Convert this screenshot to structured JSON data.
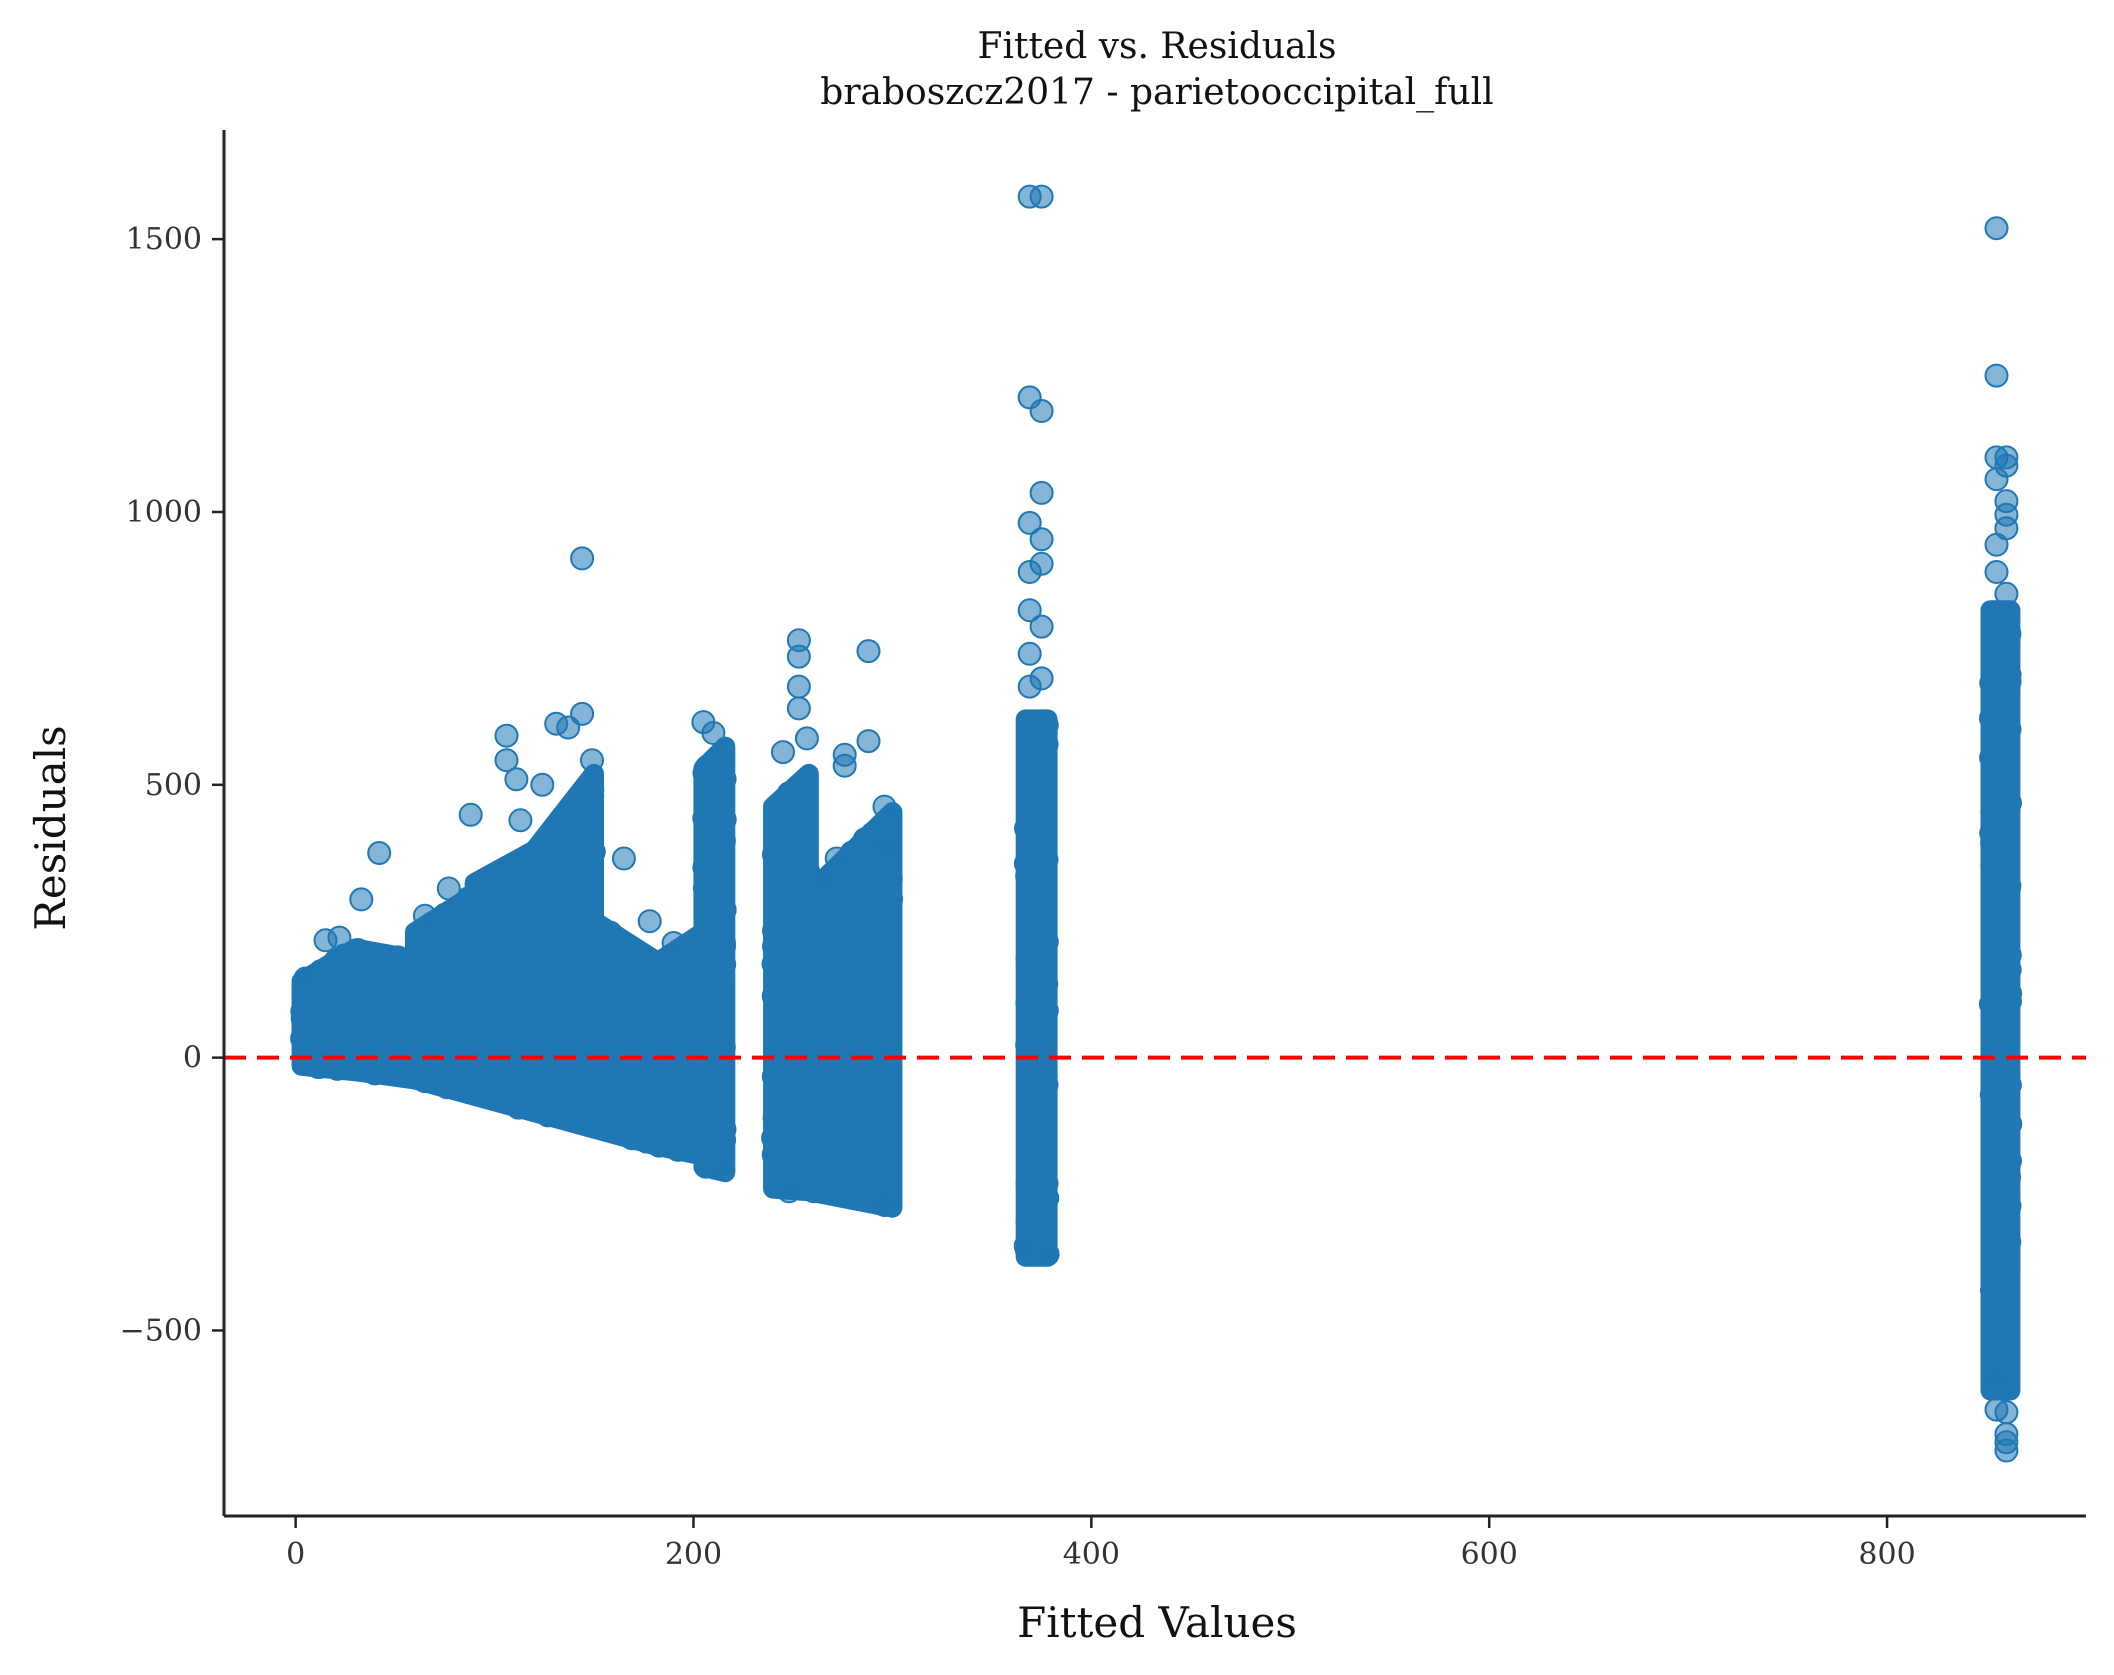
{
  "chart_data": {
    "type": "scatter",
    "title": "Fitted vs. Residuals",
    "subtitle": "braboszcz2017 - parietooccipital_full",
    "xlabel": "Fitted Values",
    "ylabel": "Residuals",
    "xlim": [
      -36,
      900
    ],
    "ylim": [
      -840,
      1700
    ],
    "xticks": [
      0,
      200,
      400,
      600,
      800
    ],
    "yticks": [
      -500,
      0,
      500,
      1000,
      1500
    ],
    "xtick_labels": [
      "0",
      "200",
      "400",
      "600",
      "800"
    ],
    "ytick_labels": [
      "−500",
      "0",
      "500",
      "1000",
      "1500"
    ],
    "grid": false,
    "point_color": "#1f77b4",
    "reference_line": {
      "y": 0,
      "color": "#ff0000",
      "style": "dashed"
    },
    "clusters": [
      {
        "x_range": [
          3,
          30
        ],
        "lower": [
          -15,
          -25
        ],
        "upper": [
          140,
          200
        ]
      },
      {
        "x_range": [
          30,
          60
        ],
        "lower": [
          -25,
          -40
        ],
        "upper": [
          200,
          180
        ]
      },
      {
        "x_range": [
          60,
          90
        ],
        "lower": [
          -40,
          -70
        ],
        "upper": [
          230,
          300
        ]
      },
      {
        "x_range": [
          90,
          120
        ],
        "lower": [
          -70,
          -100
        ],
        "upper": [
          320,
          380
        ]
      },
      {
        "x_range": [
          120,
          150
        ],
        "lower": [
          -100,
          -130
        ],
        "upper": [
          380,
          520
        ]
      },
      {
        "x_range": [
          150,
          180
        ],
        "lower": [
          -130,
          -160
        ],
        "upper": [
          250,
          180
        ]
      },
      {
        "x_range": [
          180,
          205
        ],
        "lower": [
          -160,
          -180
        ],
        "upper": [
          170,
          230
        ]
      },
      {
        "x_range": [
          205,
          216
        ],
        "lower": [
          -200,
          -210
        ],
        "upper": [
          530,
          570
        ]
      },
      {
        "x_range": [
          240,
          258
        ],
        "lower": [
          -240,
          -245
        ],
        "upper": [
          460,
          520
        ]
      },
      {
        "x_range": [
          258,
          300
        ],
        "lower": [
          -245,
          -275
        ],
        "upper": [
          300,
          450
        ]
      },
      {
        "x_range": [
          367,
          378
        ],
        "lower": [
          -365,
          -365
        ],
        "upper": [
          620,
          620
        ]
      },
      {
        "x_range": [
          852,
          862
        ],
        "lower": [
          -610,
          -610
        ],
        "upper": [
          820,
          820
        ]
      }
    ],
    "outliers": [
      {
        "x": 5,
        "y": 145
      },
      {
        "x": 15,
        "y": 215
      },
      {
        "x": 22,
        "y": 220
      },
      {
        "x": 33,
        "y": 290
      },
      {
        "x": 42,
        "y": 375
      },
      {
        "x": 65,
        "y": 260
      },
      {
        "x": 77,
        "y": 310
      },
      {
        "x": 88,
        "y": 445
      },
      {
        "x": 106,
        "y": 590
      },
      {
        "x": 106,
        "y": 545
      },
      {
        "x": 111,
        "y": 510
      },
      {
        "x": 113,
        "y": 435
      },
      {
        "x": 124,
        "y": 500
      },
      {
        "x": 131,
        "y": 612
      },
      {
        "x": 137,
        "y": 605
      },
      {
        "x": 144,
        "y": 630
      },
      {
        "x": 144,
        "y": 915
      },
      {
        "x": 149,
        "y": 545
      },
      {
        "x": 165,
        "y": 365
      },
      {
        "x": 178,
        "y": 250
      },
      {
        "x": 190,
        "y": 210
      },
      {
        "x": 205,
        "y": 615
      },
      {
        "x": 210,
        "y": 595
      },
      {
        "x": 245,
        "y": 560
      },
      {
        "x": 253,
        "y": 765
      },
      {
        "x": 253,
        "y": 735
      },
      {
        "x": 253,
        "y": 680
      },
      {
        "x": 253,
        "y": 640
      },
      {
        "x": 257,
        "y": 585
      },
      {
        "x": 266,
        "y": 325
      },
      {
        "x": 272,
        "y": 365
      },
      {
        "x": 276,
        "y": 555
      },
      {
        "x": 276,
        "y": 535
      },
      {
        "x": 288,
        "y": 745
      },
      {
        "x": 288,
        "y": 580
      },
      {
        "x": 296,
        "y": 460
      },
      {
        "x": 296,
        "y": 385
      },
      {
        "x": 369,
        "y": 1578
      },
      {
        "x": 375,
        "y": 1578
      },
      {
        "x": 369,
        "y": 1210
      },
      {
        "x": 375,
        "y": 1185
      },
      {
        "x": 375,
        "y": 1035
      },
      {
        "x": 369,
        "y": 980
      },
      {
        "x": 375,
        "y": 950
      },
      {
        "x": 375,
        "y": 905
      },
      {
        "x": 369,
        "y": 890
      },
      {
        "x": 369,
        "y": 820
      },
      {
        "x": 375,
        "y": 790
      },
      {
        "x": 369,
        "y": 740
      },
      {
        "x": 375,
        "y": 695
      },
      {
        "x": 369,
        "y": 680
      },
      {
        "x": 855,
        "y": 1520
      },
      {
        "x": 855,
        "y": 1250
      },
      {
        "x": 855,
        "y": 1100
      },
      {
        "x": 860,
        "y": 1100
      },
      {
        "x": 860,
        "y": 1085
      },
      {
        "x": 855,
        "y": 1060
      },
      {
        "x": 860,
        "y": 1020
      },
      {
        "x": 860,
        "y": 995
      },
      {
        "x": 860,
        "y": 970
      },
      {
        "x": 855,
        "y": 940
      },
      {
        "x": 855,
        "y": 890
      },
      {
        "x": 860,
        "y": 850
      },
      {
        "x": 855,
        "y": -585
      },
      {
        "x": 855,
        "y": -645
      },
      {
        "x": 860,
        "y": -650
      },
      {
        "x": 860,
        "y": -690
      },
      {
        "x": 860,
        "y": -705
      },
      {
        "x": 860,
        "y": -720
      },
      {
        "x": 367,
        "y": -345
      },
      {
        "x": 378,
        "y": -360
      },
      {
        "x": 296,
        "y": -270
      },
      {
        "x": 215,
        "y": -205
      },
      {
        "x": 248,
        "y": -245
      }
    ]
  }
}
